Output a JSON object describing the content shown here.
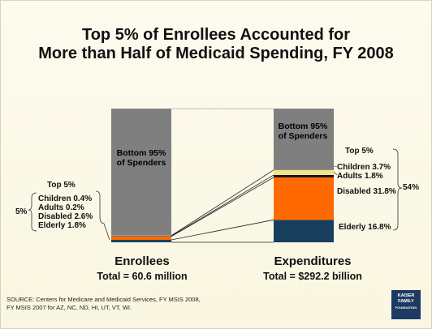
{
  "slide": {
    "title_line1": "Top 5% of Enrollees Accounted for",
    "title_line2": "More than Half of Medicaid Spending, FY 2008",
    "source_line1": "SOURCE: Centers for Medicare and Medicaid Services, FY MSIS 2008,",
    "source_line2": "FY MSIS 2007  for AZ, NC, ND, HI, UT, VT, WI.",
    "logo_line1": "KAISER",
    "logo_line2": "FAMILY",
    "logo_line3": "FOUNDATION"
  },
  "chart_data": {
    "type": "stacked-bar",
    "categories": [
      "Enrollees",
      "Expenditures"
    ],
    "totals": [
      "Total = 60.6 million",
      "Total = $292.2 billion"
    ],
    "bottom_label": "Bottom 95% of Spenders",
    "bottom_label_line1": "Bottom 95%",
    "bottom_label_line2": "of Spenders",
    "top_group_label": "Top 5%",
    "left_bracket_total": "5%",
    "right_bracket_total": "54%",
    "series": [
      {
        "name": "Elderly",
        "values": [
          1.8,
          16.8
        ],
        "color": "#173e5c"
      },
      {
        "name": "Disabled",
        "values": [
          2.6,
          31.8
        ],
        "color": "#ff6a00"
      },
      {
        "name": "Adults",
        "values": [
          0.2,
          1.8
        ],
        "color": "#111111"
      },
      {
        "name": "Children",
        "values": [
          0.4,
          3.7
        ],
        "color": "#f5e38a"
      },
      {
        "name": "Bottom 95% of Spenders",
        "values": [
          95,
          46
        ],
        "color": "#7f7f7f"
      }
    ],
    "left_labels": [
      "Children 0.4%",
      "Adults 0.2%",
      "Disabled 2.6%",
      "Elderly 1.8%"
    ],
    "right_labels": [
      "Children 3.7%",
      "Adults 1.8%",
      "Disabled 31.8%",
      "Elderly 16.8%"
    ],
    "ylim": [
      0,
      100
    ],
    "grid": false,
    "legend": "none"
  }
}
